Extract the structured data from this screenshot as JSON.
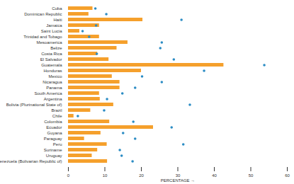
{
  "chart_data": {
    "type": "bar",
    "orientation": "horizontal",
    "categories": [
      "Cuba",
      "Dominican Republic",
      "Haiti",
      "Jamaica",
      "Saint Lucia",
      "Trinidad and Tobago",
      "Mesoamerica",
      "Belize",
      "Costa Rica",
      "El Salvador",
      "Guatemala",
      "Honduras",
      "Mexico",
      "Nicaragua",
      "Panama",
      "South America",
      "Argentina",
      "Bolivia (Plurinational State of)",
      "Brazil",
      "Chile",
      "Colombia",
      "Ecuador",
      "Guyana",
      "Paraguay",
      "Peru",
      "Suriname",
      "Uruguay",
      "Venezuela (Bolivarian Republic of)"
    ],
    "series": [
      {
        "type": "bar",
        "color": "#f5a02c",
        "values": [
          6.7,
          5.6,
          20.4,
          8.5,
          3.1,
          8.5,
          16.3,
          13.3,
          8.0,
          11.1,
          42.6,
          20.0,
          12.0,
          14.1,
          14.1,
          8.5,
          8.7,
          12.4,
          6.1,
          1.5,
          11.3,
          23.3,
          8.9,
          4.4,
          10.6,
          8.0,
          6.5,
          10.7
        ]
      },
      {
        "type": "scatter",
        "marker": "circle",
        "color": "#2b8cc4",
        "values": [
          7.4,
          10.4,
          31.0,
          7.6,
          3.9,
          5.7,
          25.6,
          25.2,
          7.8,
          28.9,
          53.7,
          37.2,
          20.2,
          25.6,
          18.3,
          14.8,
          10.6,
          33.3,
          9.8,
          2.6,
          17.8,
          28.3,
          15.0,
          18.3,
          31.5,
          14.1,
          14.6,
          17.6
        ]
      }
    ],
    "xlabel": "PERCENTAGE",
    "xlim": [
      0,
      60
    ],
    "xticks": [
      0,
      10,
      20,
      30,
      40,
      50,
      60
    ],
    "grid": false
  }
}
